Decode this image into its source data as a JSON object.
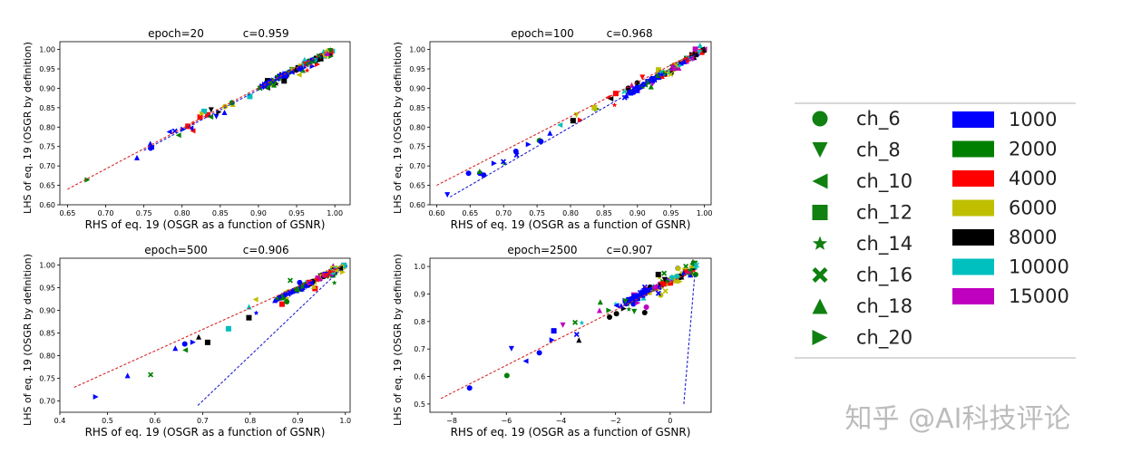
{
  "chart_data": [
    {
      "type": "scatter",
      "title_left": "epoch=20",
      "title_right": "c=0.959",
      "xlabel": "RHS of eq. 19 (OSGR as a function of GSNR)",
      "ylabel": "LHS of eq. 19 (OSGR by definition)",
      "xlim": [
        0.64,
        1.02
      ],
      "ylim": [
        0.6,
        1.02
      ],
      "xticks": [
        "0.65",
        "0.70",
        "0.75",
        "0.80",
        "0.85",
        "0.90",
        "0.95",
        "1.00"
      ],
      "xtick_values": [
        0.65,
        0.7,
        0.75,
        0.8,
        0.85,
        0.9,
        0.95,
        1.0
      ],
      "yticks": [
        "0.60",
        "0.65",
        "0.70",
        "0.75",
        "0.80",
        "0.85",
        "0.90",
        "0.95",
        "1.00"
      ],
      "ytick_values": [
        0.6,
        0.65,
        0.7,
        0.75,
        0.8,
        0.85,
        0.9,
        0.95,
        1.0
      ],
      "fit_lines": [
        {
          "color": "#d62728",
          "x": [
            0.65,
            0.99
          ],
          "y": [
            0.64,
            0.995
          ]
        },
        {
          "color": "#2020d0",
          "x": [
            0.75,
            0.99
          ],
          "y": [
            0.74,
            0.99
          ]
        }
      ],
      "clusters": [
        {
          "x": [
            0.65,
            1.0
          ],
          "y": [
            0.63,
            1.0
          ],
          "n": 60,
          "spread": 0.025,
          "tail": 0.55
        },
        {
          "x": [
            0.9,
            1.0
          ],
          "y": [
            0.9,
            1.0
          ],
          "n": 90,
          "spread": 0.02,
          "tail": 0.9
        }
      ]
    },
    {
      "type": "scatter",
      "title_left": "epoch=100",
      "title_right": "c=0.968",
      "xlabel": "RHS of eq. 19 (OSGR as a function of GSNR)",
      "ylabel": "LHS of eq. 19 (OSGR by definition)",
      "xlim": [
        0.59,
        1.01
      ],
      "ylim": [
        0.6,
        1.02
      ],
      "xticks": [
        "0.60",
        "0.65",
        "0.70",
        "0.75",
        "0.80",
        "0.85",
        "0.90",
        "0.95",
        "1.00"
      ],
      "xtick_values": [
        0.6,
        0.65,
        0.7,
        0.75,
        0.8,
        0.85,
        0.9,
        0.95,
        1.0
      ],
      "yticks": [
        "0.60",
        "0.65",
        "0.70",
        "0.75",
        "0.80",
        "0.85",
        "0.90",
        "0.95",
        "1.00"
      ],
      "ytick_values": [
        0.6,
        0.65,
        0.7,
        0.75,
        0.8,
        0.85,
        0.9,
        0.95,
        1.0
      ],
      "fit_lines": [
        {
          "color": "#d62728",
          "x": [
            0.6,
            0.99
          ],
          "y": [
            0.65,
            0.995
          ]
        },
        {
          "color": "#2020d0",
          "x": [
            0.62,
            0.99
          ],
          "y": [
            0.62,
            0.99
          ]
        }
      ],
      "clusters": [
        {
          "x": [
            0.6,
            1.0
          ],
          "y": [
            0.62,
            1.0
          ],
          "n": 60,
          "spread": 0.025,
          "tail": 0.55
        },
        {
          "x": [
            0.88,
            1.0
          ],
          "y": [
            0.88,
            1.0
          ],
          "n": 90,
          "spread": 0.02,
          "tail": 0.9
        }
      ]
    },
    {
      "type": "scatter",
      "title_left": "epoch=500",
      "title_right": "c=0.906",
      "xlabel": "RHS of eq. 19 (OSGR as a function of GSNR)",
      "ylabel": "LHS of eq. 19 (OSGR by definition)",
      "xlim": [
        0.4,
        1.01
      ],
      "ylim": [
        0.675,
        1.015
      ],
      "xticks": [
        "0.4",
        "0.5",
        "0.6",
        "0.7",
        "0.8",
        "0.9",
        "1.0"
      ],
      "xtick_values": [
        0.4,
        0.5,
        0.6,
        0.7,
        0.8,
        0.9,
        1.0
      ],
      "yticks": [
        "0.70",
        "0.75",
        "0.80",
        "0.85",
        "0.90",
        "0.95",
        "1.00"
      ],
      "ytick_values": [
        0.7,
        0.75,
        0.8,
        0.85,
        0.9,
        0.95,
        1.0
      ],
      "fit_lines": [
        {
          "color": "#d62728",
          "x": [
            0.43,
            0.99
          ],
          "y": [
            0.73,
            0.995
          ]
        },
        {
          "color": "#2020d0",
          "x": [
            0.69,
            0.99
          ],
          "y": [
            0.69,
            0.99
          ]
        }
      ],
      "clusters": [
        {
          "x": [
            0.43,
            1.0
          ],
          "y": [
            0.69,
            1.0
          ],
          "n": 40,
          "spread": 0.04,
          "tail": 0.4
        },
        {
          "x": [
            0.85,
            1.0
          ],
          "y": [
            0.92,
            1.0
          ],
          "n": 110,
          "spread": 0.02,
          "tail": 0.9
        }
      ]
    },
    {
      "type": "scatter",
      "title_left": "epoch=2500",
      "title_right": "c=0.907",
      "xlabel": "RHS of eq. 19 (OSGR as a function of GSNR)",
      "ylabel": "LHS of eq. 19 (OSGR by definition)",
      "xlim": [
        -8.8,
        1.5
      ],
      "ylim": [
        0.47,
        1.03
      ],
      "xticks": [
        "−8",
        "−6",
        "−4",
        "−2",
        "0"
      ],
      "xtick_values": [
        -8,
        -6,
        -4,
        -2,
        0
      ],
      "yticks": [
        "0.5",
        "0.6",
        "0.7",
        "0.8",
        "0.9",
        "1.0"
      ],
      "ytick_values": [
        0.5,
        0.6,
        0.7,
        0.8,
        0.9,
        1.0
      ],
      "fit_lines": [
        {
          "color": "#d62728",
          "x": [
            -8.4,
            0.95
          ],
          "y": [
            0.52,
            0.99
          ]
        },
        {
          "color": "#2020d0",
          "x": [
            0.5,
            0.9
          ],
          "y": [
            0.5,
            0.97
          ]
        }
      ],
      "clusters": [
        {
          "x": [
            -8.4,
            1.0
          ],
          "y": [
            0.5,
            1.0
          ],
          "n": 60,
          "spread": 0.06,
          "tail": 0.35
        },
        {
          "x": [
            -2.0,
            1.0
          ],
          "y": [
            0.85,
            1.0
          ],
          "n": 90,
          "spread": 0.03,
          "tail": 0.8
        }
      ]
    }
  ],
  "legend": {
    "shapes": [
      {
        "label": "ch_6",
        "marker": "circle"
      },
      {
        "label": "ch_8",
        "marker": "triangle-down"
      },
      {
        "label": "ch_10",
        "marker": "triangle-left"
      },
      {
        "label": "ch_12",
        "marker": "square"
      },
      {
        "label": "ch_14",
        "marker": "star"
      },
      {
        "label": "ch_16",
        "marker": "x"
      },
      {
        "label": "ch_18",
        "marker": "triangle-up"
      },
      {
        "label": "ch_20",
        "marker": "triangle-right"
      }
    ],
    "colors": [
      {
        "label": "1000",
        "color": "#0000ff"
      },
      {
        "label": "2000",
        "color": "#008000"
      },
      {
        "label": "4000",
        "color": "#ff0000"
      },
      {
        "label": "6000",
        "color": "#bfbf00"
      },
      {
        "label": "8000",
        "color": "#000000"
      },
      {
        "label": "10000",
        "color": "#00bfbf"
      },
      {
        "label": "15000",
        "color": "#bf00bf"
      }
    ],
    "shape_color": "#108010"
  },
  "watermark": "知乎 @AI科技评论"
}
